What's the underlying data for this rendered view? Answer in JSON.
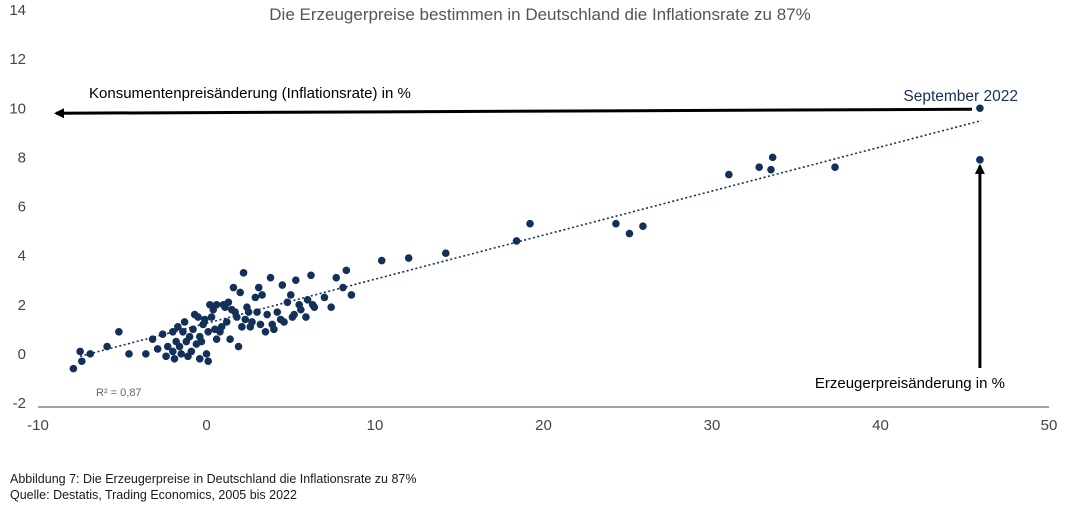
{
  "chart_data": {
    "type": "scatter",
    "title": "Die Erzeugerpreise bestimmen in Deutschland die Inflationsrate zu 87%",
    "xlabel": "Erzeugerpreisänderung in %",
    "ylabel": "Konsumentenpreisänderung (Inflationsrate) in %",
    "xlim": [
      -10,
      50
    ],
    "ylim": [
      -2,
      14
    ],
    "xticks": [
      "-10",
      "0",
      "10",
      "20",
      "30",
      "40",
      "50"
    ],
    "yticks": [
      "-2",
      "0",
      "2",
      "4",
      "6",
      "8",
      "10",
      "12",
      "14"
    ],
    "grid": false,
    "r2_label": "R² = 0,87",
    "annotation": "September 2022",
    "colors": {
      "points": "#13305a",
      "trend": "#13305a",
      "arrows": "#000000",
      "title": "#555555"
    },
    "trendline": {
      "x": [
        -7.5,
        46
      ],
      "y": [
        -0.1,
        9.5
      ]
    },
    "points": [
      [
        -7.9,
        -0.6
      ],
      [
        -7.5,
        0.1
      ],
      [
        -7.4,
        -0.3
      ],
      [
        -6.9,
        0
      ],
      [
        -5.9,
        0.3
      ],
      [
        -5.2,
        0.9
      ],
      [
        -4.6,
        0
      ],
      [
        -3.6,
        0
      ],
      [
        -3.2,
        0.6
      ],
      [
        -2.9,
        0.2
      ],
      [
        -2.6,
        0.8
      ],
      [
        -2.3,
        0.3
      ],
      [
        -2.0,
        0.1
      ],
      [
        -1.8,
        0.5
      ],
      [
        -1.6,
        0.3
      ],
      [
        -1.4,
        0.9
      ],
      [
        -1.2,
        0.5
      ],
      [
        -1.0,
        0.7
      ],
      [
        -0.8,
        1.0
      ],
      [
        -0.6,
        0.4
      ],
      [
        -0.4,
        0.7
      ],
      [
        -0.2,
        1.2
      ],
      [
        0.1,
        0.9
      ],
      [
        0.3,
        1.5
      ],
      [
        0.6,
        0.6
      ],
      [
        0.9,
        1.1
      ],
      [
        1.2,
        1.3
      ],
      [
        1.5,
        1.8
      ],
      [
        1.8,
        1.5
      ],
      [
        2.1,
        1.1
      ],
      [
        2.4,
        1.9
      ],
      [
        2.7,
        1.3
      ],
      [
        3.0,
        1.7
      ],
      [
        3.3,
        2.4
      ],
      [
        3.6,
        1.6
      ],
      [
        4.0,
        1.0
      ],
      [
        4.4,
        1.4
      ],
      [
        4.8,
        2.1
      ],
      [
        5.2,
        1.6
      ],
      [
        5.6,
        1.8
      ],
      [
        6.0,
        2.2
      ],
      [
        6.4,
        1.9
      ],
      [
        -1.5,
        0.0
      ],
      [
        -0.9,
        0.1
      ],
      [
        -1.1,
        -0.1
      ],
      [
        0.0,
        0.0
      ],
      [
        -0.4,
        -0.2
      ],
      [
        0.1,
        -0.3
      ],
      [
        0.8,
        0.9
      ],
      [
        1.6,
        2.7
      ],
      [
        2.0,
        2.5
      ],
      [
        2.2,
        3.3
      ],
      [
        2.5,
        1.7
      ],
      [
        2.9,
        2.3
      ],
      [
        3.1,
        2.7
      ],
      [
        3.8,
        3.1
      ],
      [
        4.5,
        2.8
      ],
      [
        5.0,
        2.4
      ],
      [
        5.3,
        3.0
      ],
      [
        6.2,
        3.2
      ],
      [
        -0.5,
        1.5
      ],
      [
        -0.1,
        1.4
      ],
      [
        0.4,
        1.8
      ],
      [
        0.6,
        2.0
      ],
      [
        1.0,
        2.0
      ],
      [
        1.3,
        2.1
      ],
      [
        1.7,
        1.7
      ],
      [
        2.3,
        1.4
      ],
      [
        2.6,
        1.1
      ],
      [
        3.2,
        1.2
      ],
      [
        3.5,
        0.9
      ],
      [
        3.9,
        1.2
      ],
      [
        4.2,
        1.7
      ],
      [
        4.6,
        1.3
      ],
      [
        5.1,
        1.5
      ],
      [
        5.5,
        2.0
      ],
      [
        5.9,
        1.5
      ],
      [
        6.3,
        2.0
      ],
      [
        7.0,
        2.3
      ],
      [
        7.4,
        1.9
      ],
      [
        7.7,
        3.1
      ],
      [
        8.1,
        2.7
      ],
      [
        8.3,
        3.4
      ],
      [
        8.6,
        2.4
      ],
      [
        -2.0,
        0.9
      ],
      [
        -1.7,
        1.1
      ],
      [
        -1.3,
        1.3
      ],
      [
        -0.7,
        1.6
      ],
      [
        0.2,
        2.0
      ],
      [
        1.1,
        1.9
      ],
      [
        -2.4,
        -0.1
      ],
      [
        -1.9,
        -0.2
      ],
      [
        -0.3,
        0.5
      ],
      [
        0.5,
        1.0
      ],
      [
        1.4,
        0.6
      ],
      [
        1.9,
        0.3
      ],
      [
        10.4,
        3.8
      ],
      [
        12.0,
        3.9
      ],
      [
        14.2,
        4.1
      ],
      [
        18.4,
        4.6
      ],
      [
        19.2,
        5.3
      ],
      [
        24.3,
        5.3
      ],
      [
        25.1,
        4.9
      ],
      [
        25.9,
        5.2
      ],
      [
        31.0,
        7.3
      ],
      [
        32.8,
        7.6
      ],
      [
        33.5,
        7.5
      ],
      [
        33.6,
        8.0
      ],
      [
        37.3,
        7.6
      ],
      [
        45.9,
        7.9
      ],
      [
        45.9,
        10.0
      ]
    ]
  },
  "captions": {
    "line1": "Abbildung 7: Die Erzeugerpreise in Deutschland die Inflationsrate zu 87%",
    "line2": "Quelle: Destatis, Trading Economics, 2005 bis 2022"
  }
}
